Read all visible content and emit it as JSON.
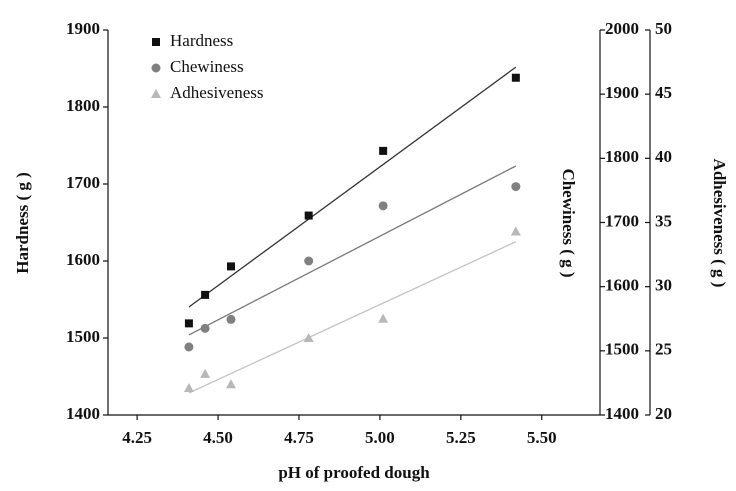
{
  "chart_data": {
    "type": "scatter",
    "xlabel": "pH of proofed dough",
    "ylabel": "Hardness ( g )",
    "y2label": "Chewiness ( g )",
    "y3label": "Adhesiveness ( g )",
    "xlim": [
      4.16,
      5.68
    ],
    "xticks": [
      {
        "value": 4.25,
        "label": "4.25"
      },
      {
        "value": 4.5,
        "label": "4.50"
      },
      {
        "value": 4.75,
        "label": "4.75"
      },
      {
        "value": 5,
        "label": "5.00"
      },
      {
        "value": 5.25,
        "label": "5.25"
      },
      {
        "value": 5.5,
        "label": "5.50"
      }
    ],
    "ylim": [
      1400,
      1900
    ],
    "yticks": [
      1400,
      1500,
      1600,
      1700,
      1800,
      1900
    ],
    "y2lim": [
      1400,
      2000
    ],
    "y2ticks": [
      1400,
      1500,
      1600,
      1700,
      1800,
      1900,
      2000
    ],
    "y3lim": [
      20,
      50
    ],
    "y3ticks": [
      20,
      25,
      30,
      35,
      40,
      45,
      50
    ],
    "x": [
      4.41,
      4.46,
      4.54,
      4.78,
      5.01,
      5.42
    ],
    "trendline": true,
    "series": [
      {
        "name": "Hardness",
        "color": "#111111",
        "marker": "square",
        "line_color": "#333333",
        "axis": "y",
        "values": [
          1519,
          1556,
          1593,
          1659,
          1743,
          1838
        ]
      },
      {
        "name": "Chewiness",
        "color": "#808080",
        "marker": "circle",
        "line_color": "#7a7a7a",
        "axis": "y2",
        "values": [
          1506,
          1535,
          1549,
          1640,
          1726,
          1756
        ]
      },
      {
        "name": "Adhesiveness",
        "color": "#b8b8b8",
        "marker": "triangle",
        "line_color": "#c4c4c4",
        "axis": "y3",
        "values": [
          22.1,
          23.2,
          22.4,
          26,
          27.5,
          34.3
        ]
      }
    ]
  }
}
